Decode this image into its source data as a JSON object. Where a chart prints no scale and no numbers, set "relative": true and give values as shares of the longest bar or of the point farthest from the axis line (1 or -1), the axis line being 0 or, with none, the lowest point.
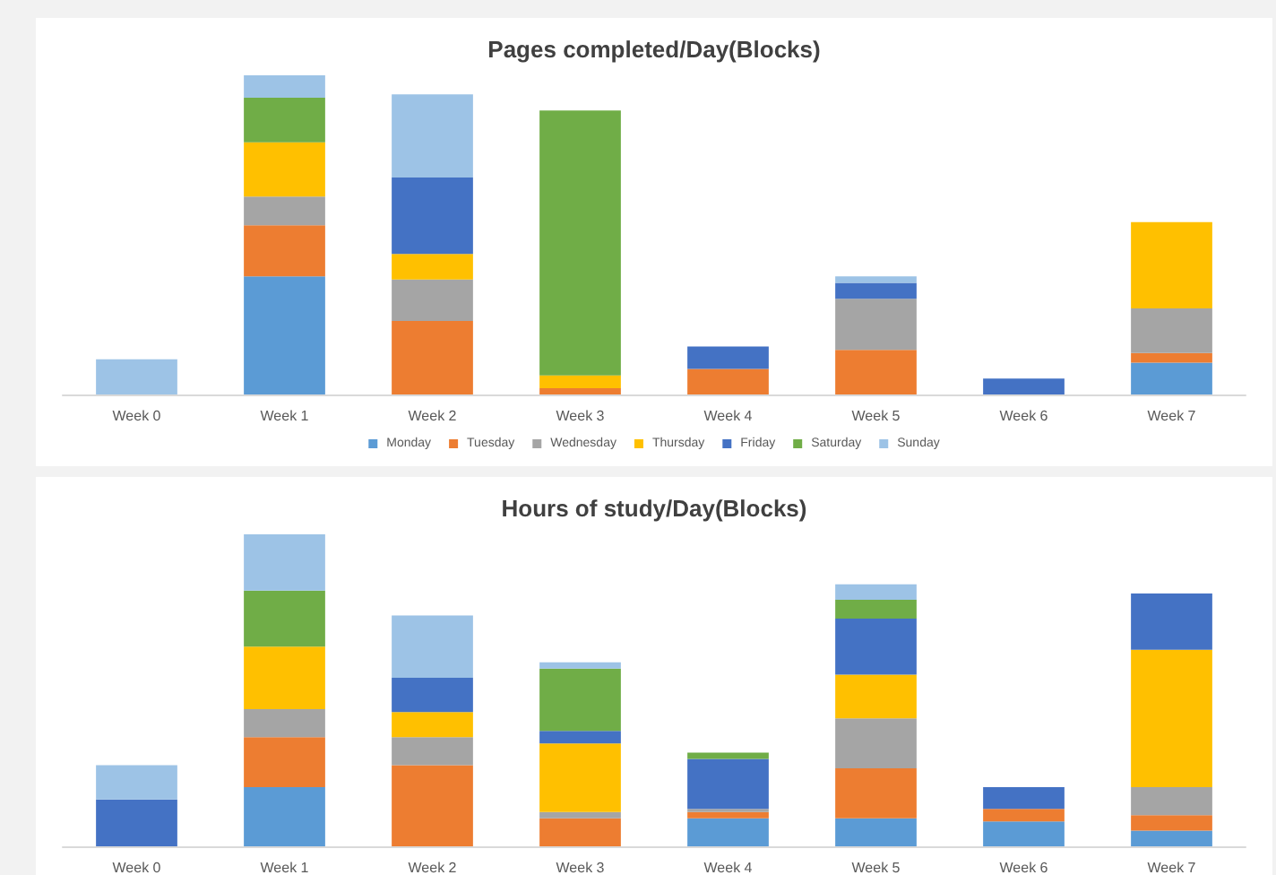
{
  "chart_data": [
    {
      "type": "bar",
      "title": "Pages completed/Day(Blocks)",
      "stacked": true,
      "relative": true,
      "legend": "bottom",
      "categories": [
        "Week 0",
        "Week 1",
        "Week 2",
        "Week 3",
        "Week 4",
        "Week 5",
        "Week 6",
        "Week 7"
      ],
      "series": [
        {
          "name": "Monday",
          "color": "#5b9bd5",
          "values": [
            null,
            0.37,
            null,
            null,
            null,
            null,
            null,
            0.1
          ]
        },
        {
          "name": "Tuesday",
          "color": "#ed7d31",
          "values": [
            null,
            0.16,
            0.23,
            0.02,
            0.08,
            0.14,
            null,
            0.03
          ]
        },
        {
          "name": "Wednesday",
          "color": "#a5a5a5",
          "values": [
            null,
            0.09,
            0.13,
            null,
            null,
            0.16,
            null,
            0.14
          ]
        },
        {
          "name": "Thursday",
          "color": "#ffc000",
          "values": [
            null,
            0.17,
            0.08,
            0.04,
            null,
            null,
            null,
            0.27
          ]
        },
        {
          "name": "Friday",
          "color": "#4472c4",
          "values": [
            null,
            null,
            0.24,
            null,
            0.07,
            0.05,
            0.05,
            null
          ]
        },
        {
          "name": "Saturday",
          "color": "#70ad47",
          "values": [
            null,
            0.14,
            null,
            0.83,
            null,
            null,
            null,
            null
          ]
        },
        {
          "name": "Sunday",
          "color": "#9dc3e6",
          "values": [
            0.11,
            0.07,
            0.26,
            null,
            null,
            0.02,
            null,
            null
          ]
        }
      ]
    },
    {
      "type": "bar",
      "title": "Hours of study/Day(Blocks)",
      "stacked": true,
      "relative": true,
      "legend": false,
      "categories": [
        "Week 0",
        "Week 1",
        "Week 2",
        "Week 3",
        "Week 4",
        "Week 5",
        "Week 6",
        "Week 7"
      ],
      "series": [
        {
          "color": "#5b9bd5",
          "values": [
            null,
            0.19,
            null,
            null,
            0.09,
            0.09,
            0.08,
            0.05
          ]
        },
        {
          "color": "#ed7d31",
          "values": [
            null,
            0.16,
            0.26,
            0.09,
            0.02,
            0.16,
            0.04,
            0.05
          ]
        },
        {
          "color": "#a5a5a5",
          "values": [
            null,
            0.09,
            0.09,
            0.02,
            0.01,
            0.16,
            null,
            0.09
          ]
        },
        {
          "color": "#ffc000",
          "values": [
            null,
            0.2,
            0.08,
            0.22,
            null,
            0.14,
            null,
            0.44
          ]
        },
        {
          "color": "#4472c4",
          "values": [
            0.15,
            null,
            0.11,
            0.04,
            0.16,
            0.18,
            0.07,
            0.18
          ]
        },
        {
          "color": "#70ad47",
          "values": [
            null,
            0.18,
            null,
            0.2,
            0.02,
            0.06,
            null,
            null
          ]
        },
        {
          "color": "#9dc3e6",
          "values": [
            0.11,
            0.18,
            0.2,
            0.02,
            null,
            0.05,
            null,
            null
          ]
        }
      ]
    }
  ]
}
